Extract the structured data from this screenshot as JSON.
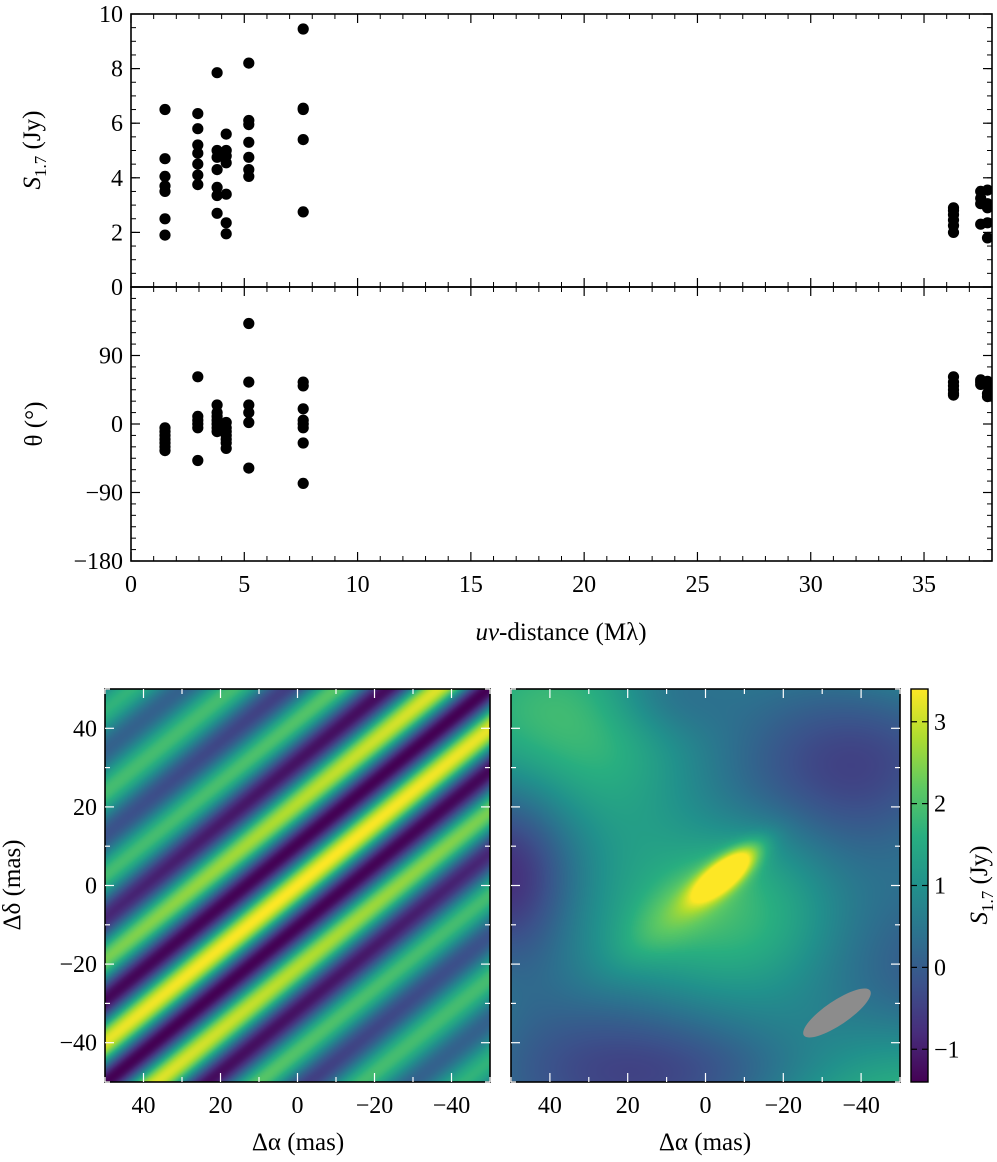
{
  "chart_data": [
    {
      "type": "scatter",
      "xlabel": "uv-distance (Mλ)",
      "ylabel": "S1.7 (Jy)",
      "xlim": [
        0,
        38
      ],
      "ylim": [
        0,
        10
      ],
      "xticks": [
        "0",
        "5",
        "10",
        "15",
        "20",
        "25",
        "30",
        "35"
      ],
      "yticks": [
        "0",
        "2",
        "4",
        "6",
        "8",
        "10"
      ],
      "points": [
        [
          1.5,
          6.5
        ],
        [
          1.5,
          4.7
        ],
        [
          1.5,
          4.05
        ],
        [
          1.5,
          3.7
        ],
        [
          1.5,
          3.5
        ],
        [
          1.5,
          2.5
        ],
        [
          1.5,
          1.9
        ],
        [
          2.95,
          6.35
        ],
        [
          2.95,
          5.8
        ],
        [
          2.95,
          5.2
        ],
        [
          2.95,
          4.9
        ],
        [
          2.95,
          4.5
        ],
        [
          2.95,
          4.1
        ],
        [
          2.95,
          3.75
        ],
        [
          3.8,
          7.85
        ],
        [
          3.8,
          5.0
        ],
        [
          3.8,
          4.75
        ],
        [
          3.8,
          4.3
        ],
        [
          3.8,
          3.65
        ],
        [
          3.8,
          3.35
        ],
        [
          3.8,
          2.7
        ],
        [
          4.2,
          5.6
        ],
        [
          4.2,
          5.0
        ],
        [
          4.2,
          4.8
        ],
        [
          4.2,
          4.55
        ],
        [
          4.2,
          3.4
        ],
        [
          4.2,
          2.35
        ],
        [
          4.2,
          1.95
        ],
        [
          5.2,
          8.2
        ],
        [
          5.2,
          6.1
        ],
        [
          5.2,
          5.95
        ],
        [
          5.2,
          5.3
        ],
        [
          5.2,
          4.75
        ],
        [
          5.2,
          4.3
        ],
        [
          5.2,
          4.05
        ],
        [
          7.6,
          9.45
        ],
        [
          7.6,
          6.55
        ],
        [
          7.6,
          6.5
        ],
        [
          7.6,
          5.4
        ],
        [
          7.6,
          2.75
        ],
        [
          36.3,
          2.9
        ],
        [
          36.3,
          2.8
        ],
        [
          36.3,
          2.65
        ],
        [
          36.3,
          2.45
        ],
        [
          36.3,
          2.25
        ],
        [
          36.3,
          2.0
        ],
        [
          37.5,
          3.5
        ],
        [
          37.5,
          3.25
        ],
        [
          37.5,
          3.05
        ],
        [
          37.5,
          2.3
        ],
        [
          37.8,
          3.55
        ],
        [
          37.8,
          3.05
        ],
        [
          37.8,
          2.9
        ],
        [
          37.8,
          2.35
        ],
        [
          37.8,
          1.8
        ]
      ]
    },
    {
      "type": "scatter",
      "xlabel": "uv-distance (Mλ)",
      "ylabel": "θ (°)",
      "xlim": [
        0,
        38
      ],
      "ylim": [
        -180,
        180
      ],
      "xticks": [
        "0",
        "5",
        "10",
        "15",
        "20",
        "25",
        "30",
        "35"
      ],
      "yticks": [
        "−180",
        "−90",
        "0",
        "90"
      ],
      "points": [
        [
          1.5,
          -5
        ],
        [
          1.5,
          -10
        ],
        [
          1.5,
          -15
        ],
        [
          1.5,
          -20
        ],
        [
          1.5,
          -25
        ],
        [
          1.5,
          -30
        ],
        [
          1.5,
          -35
        ],
        [
          2.95,
          62
        ],
        [
          2.95,
          10
        ],
        [
          2.95,
          5
        ],
        [
          2.95,
          0
        ],
        [
          2.95,
          -5
        ],
        [
          2.95,
          -48
        ],
        [
          3.8,
          25
        ],
        [
          3.8,
          15
        ],
        [
          3.8,
          10
        ],
        [
          3.8,
          5
        ],
        [
          3.8,
          0
        ],
        [
          3.8,
          -5
        ],
        [
          3.8,
          -10
        ],
        [
          4.2,
          2
        ],
        [
          4.2,
          -5
        ],
        [
          4.2,
          -10
        ],
        [
          4.2,
          -15
        ],
        [
          4.2,
          -20
        ],
        [
          4.2,
          -25
        ],
        [
          4.2,
          -32
        ],
        [
          5.2,
          132
        ],
        [
          5.2,
          55
        ],
        [
          5.2,
          25
        ],
        [
          5.2,
          15
        ],
        [
          5.2,
          2
        ],
        [
          5.2,
          -58
        ],
        [
          7.6,
          55
        ],
        [
          7.6,
          50
        ],
        [
          7.6,
          20
        ],
        [
          7.6,
          5
        ],
        [
          7.6,
          0
        ],
        [
          7.6,
          -5
        ],
        [
          7.6,
          -25
        ],
        [
          7.6,
          -78
        ],
        [
          36.3,
          62
        ],
        [
          36.3,
          55
        ],
        [
          36.3,
          50
        ],
        [
          36.3,
          45
        ],
        [
          36.3,
          40
        ],
        [
          36.3,
          38
        ],
        [
          37.5,
          58
        ],
        [
          37.5,
          55
        ],
        [
          37.5,
          52
        ],
        [
          37.8,
          56
        ],
        [
          37.8,
          50
        ],
        [
          37.8,
          40
        ],
        [
          37.8,
          36
        ]
      ]
    },
    {
      "type": "heatmap",
      "xlabel": "Δα (mas)",
      "ylabel": "Δδ (mas)",
      "xlim": [
        50,
        -50
      ],
      "ylim": [
        -50,
        50
      ],
      "xticks": [
        "40",
        "20",
        "0",
        "−20",
        "−40"
      ],
      "yticks": [
        "40",
        "20",
        "0",
        "−20",
        "−40"
      ],
      "description_hidden": true
    },
    {
      "type": "heatmap",
      "xlabel": "Δα (mas)",
      "xlim": [
        50,
        -50
      ],
      "ylim": [
        -50,
        50
      ],
      "xticks": [
        "40",
        "20",
        "0",
        "−20",
        "−40"
      ],
      "colorbar": {
        "label": "S1.7 (Jy)",
        "range": [
          -1.4,
          3.4
        ],
        "ticks": [
          "−1",
          "0",
          "1",
          "2",
          "3"
        ]
      },
      "beam_color": "#8c8c8c"
    }
  ],
  "labels": {
    "top_ylabel_main": "S",
    "top_ylabel_sub": "1.7",
    "top_ylabel_unit": " (Jy)",
    "mid_ylabel": "θ (°)",
    "uv_xlabel_italic": "uv",
    "uv_xlabel_rest": "-distance (Mλ)",
    "dirty_ylabel": "Δδ (mas)",
    "dirty_xlabel": "Δα (mas)",
    "clean_xlabel": "Δα (mas)",
    "cb_label_main": "S",
    "cb_label_sub": "1.7",
    "cb_label_unit": " (Jy)"
  },
  "colors": {
    "points": "#000000",
    "viridis": [
      "#440154",
      "#472d7b",
      "#3b528b",
      "#2c728e",
      "#21918c",
      "#28ae80",
      "#5ec962",
      "#addc30",
      "#fde725"
    ]
  }
}
